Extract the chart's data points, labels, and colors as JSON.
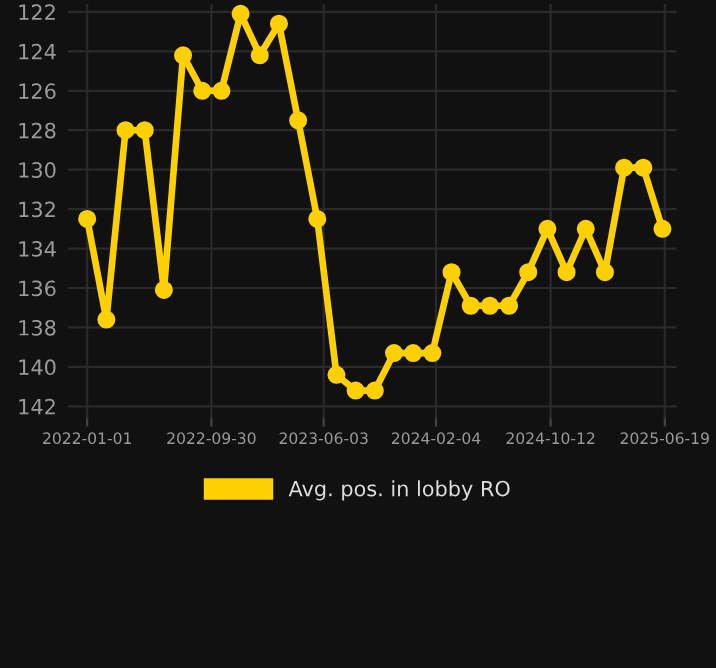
{
  "chart_data": {
    "type": "line",
    "x": [
      "2022-01-01",
      "2022-02-12",
      "2022-03-26",
      "2022-05-07",
      "2022-06-18",
      "2022-07-30",
      "2022-09-10",
      "2022-10-22",
      "2022-12-03",
      "2023-01-14",
      "2023-02-25",
      "2023-04-08",
      "2023-05-20",
      "2023-07-01",
      "2023-08-12",
      "2023-09-23",
      "2023-11-04",
      "2023-12-16",
      "2024-01-27",
      "2024-03-09",
      "2024-04-20",
      "2024-06-01",
      "2024-07-13",
      "2024-08-24",
      "2024-10-05",
      "2024-11-16",
      "2024-12-28",
      "2025-02-08",
      "2025-03-22",
      "2025-05-03",
      "2025-06-14"
    ],
    "series": [
      {
        "name": "Avg. pos. in lobby RO",
        "color": "#ffd000",
        "values": [
          132.5,
          137.6,
          128.0,
          128.0,
          136.1,
          124.2,
          126.0,
          126.0,
          122.1,
          124.2,
          122.6,
          127.5,
          132.5,
          140.4,
          141.2,
          141.2,
          139.3,
          139.3,
          139.3,
          135.2,
          136.9,
          136.9,
          136.9,
          135.2,
          133.0,
          135.2,
          133.0,
          135.2,
          129.9,
          129.9,
          133.0
        ]
      }
    ],
    "ylim": [
      142.6,
      121.6
    ],
    "yticks": [
      122,
      124,
      126,
      128,
      130,
      132,
      134,
      136,
      138,
      140,
      142
    ],
    "xlim": [
      "2021-11-20",
      "2025-07-15"
    ],
    "xticks": [
      {
        "value": "2022-01-01",
        "label": "2022-01-01"
      },
      {
        "value": "2022-09-30",
        "label": "2022-09-30"
      },
      {
        "value": "2023-06-03",
        "label": "2023-06-03"
      },
      {
        "value": "2024-02-04",
        "label": "2024-02-04"
      },
      {
        "value": "2024-10-12",
        "label": "2024-10-12"
      },
      {
        "value": "2025-06-19",
        "label": "2025-06-19"
      }
    ],
    "grid": true,
    "legend": "bottom",
    "marker": "circle",
    "line_style": "solid"
  }
}
